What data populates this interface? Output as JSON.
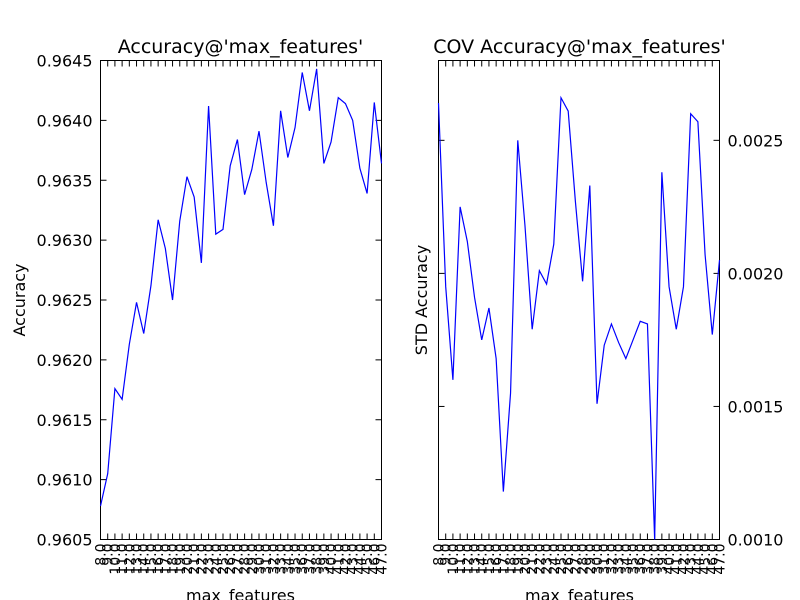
{
  "chart_data": [
    {
      "type": "line",
      "title": "Accuracy@'max_features'",
      "xlabel": "max_features",
      "ylabel": "Accuracy",
      "ylim": [
        0.9605,
        0.9645
      ],
      "yticks": [
        "0.9605",
        "0.9610",
        "0.9615",
        "0.9620",
        "0.9625",
        "0.9630",
        "0.9635",
        "0.9640",
        "0.9645"
      ],
      "xticks": [
        "8.0",
        "9.0",
        "10.0",
        "11.0",
        "12.0",
        "13.0",
        "14.0",
        "15.0",
        "16.0",
        "17.0",
        "18.0",
        "19.0",
        "20.0",
        "21.0",
        "22.0",
        "23.0",
        "24.0",
        "25.0",
        "26.0",
        "27.0",
        "28.0",
        "29.0",
        "30.0",
        "31.0",
        "32.0",
        "33.0",
        "34.0",
        "35.0",
        "36.0",
        "37.0",
        "38.0",
        "39.0",
        "40.0",
        "41.0",
        "42.0",
        "43.0",
        "44.0",
        "45.0",
        "46.0",
        "47.0"
      ],
      "x": [
        8,
        9,
        10,
        11,
        12,
        13,
        14,
        15,
        16,
        17,
        18,
        19,
        20,
        21,
        22,
        23,
        24,
        25,
        26,
        27,
        28,
        29,
        30,
        31,
        32,
        33,
        34,
        35,
        36,
        37,
        38,
        39,
        40,
        41,
        42,
        43,
        44,
        45,
        46,
        47
      ],
      "series": [
        {
          "color": "#0000ff",
          "values": [
            0.96078,
            0.96105,
            0.96176,
            0.96167,
            0.96213,
            0.96248,
            0.96222,
            0.96262,
            0.96317,
            0.96293,
            0.9625,
            0.96316,
            0.96353,
            0.96336,
            0.96281,
            0.96412,
            0.96305,
            0.96309,
            0.96362,
            0.96384,
            0.96338,
            0.96359,
            0.96391,
            0.96348,
            0.96312,
            0.96408,
            0.96369,
            0.96394,
            0.9644,
            0.96408,
            0.96443,
            0.96364,
            0.96382,
            0.96419,
            0.96414,
            0.964,
            0.9636,
            0.96339,
            0.96415,
            0.96364
          ]
        }
      ]
    },
    {
      "type": "line",
      "title": "COV Accuracy@'max_features'",
      "xlabel": "max_features",
      "ylabel": "STD Accuracy",
      "ylim": [
        0.001,
        0.0028
      ],
      "yticks": [
        "0.0010",
        "0.0015",
        "0.0020",
        "0.0025"
      ],
      "xticks": [
        "8.0",
        "9.0",
        "10.0",
        "11.0",
        "12.0",
        "13.0",
        "14.0",
        "15.0",
        "16.0",
        "17.0",
        "18.0",
        "19.0",
        "20.0",
        "21.0",
        "22.0",
        "23.0",
        "24.0",
        "25.0",
        "26.0",
        "27.0",
        "28.0",
        "29.0",
        "30.0",
        "31.0",
        "32.0",
        "33.0",
        "34.0",
        "35.0",
        "36.0",
        "37.0",
        "38.0",
        "39.0",
        "40.0",
        "41.0",
        "42.0",
        "43.0",
        "44.0",
        "45.0",
        "46.0",
        "47.0"
      ],
      "x": [
        8,
        9,
        10,
        11,
        12,
        13,
        14,
        15,
        16,
        17,
        18,
        19,
        20,
        21,
        22,
        23,
        24,
        25,
        26,
        27,
        28,
        29,
        30,
        31,
        32,
        33,
        34,
        35,
        36,
        37,
        38,
        39,
        40,
        41,
        42,
        43,
        44,
        45,
        46,
        47
      ],
      "series": [
        {
          "color": "#0000ff",
          "values": [
            0.00264,
            0.00195,
            0.0016,
            0.00225,
            0.00212,
            0.00191,
            0.00175,
            0.00187,
            0.00168,
            0.00118,
            0.00155,
            0.0025,
            0.00218,
            0.00179,
            0.00201,
            0.00196,
            0.00211,
            0.00266,
            0.00261,
            0.00227,
            0.00197,
            0.00233,
            0.00151,
            0.00173,
            0.00181,
            0.00174,
            0.00168,
            0.00175,
            0.00182,
            0.00181,
            0.001,
            0.00238,
            0.00195,
            0.00179,
            0.00195,
            0.0026,
            0.00257,
            0.00207,
            0.00177,
            0.00205
          ]
        }
      ]
    }
  ]
}
